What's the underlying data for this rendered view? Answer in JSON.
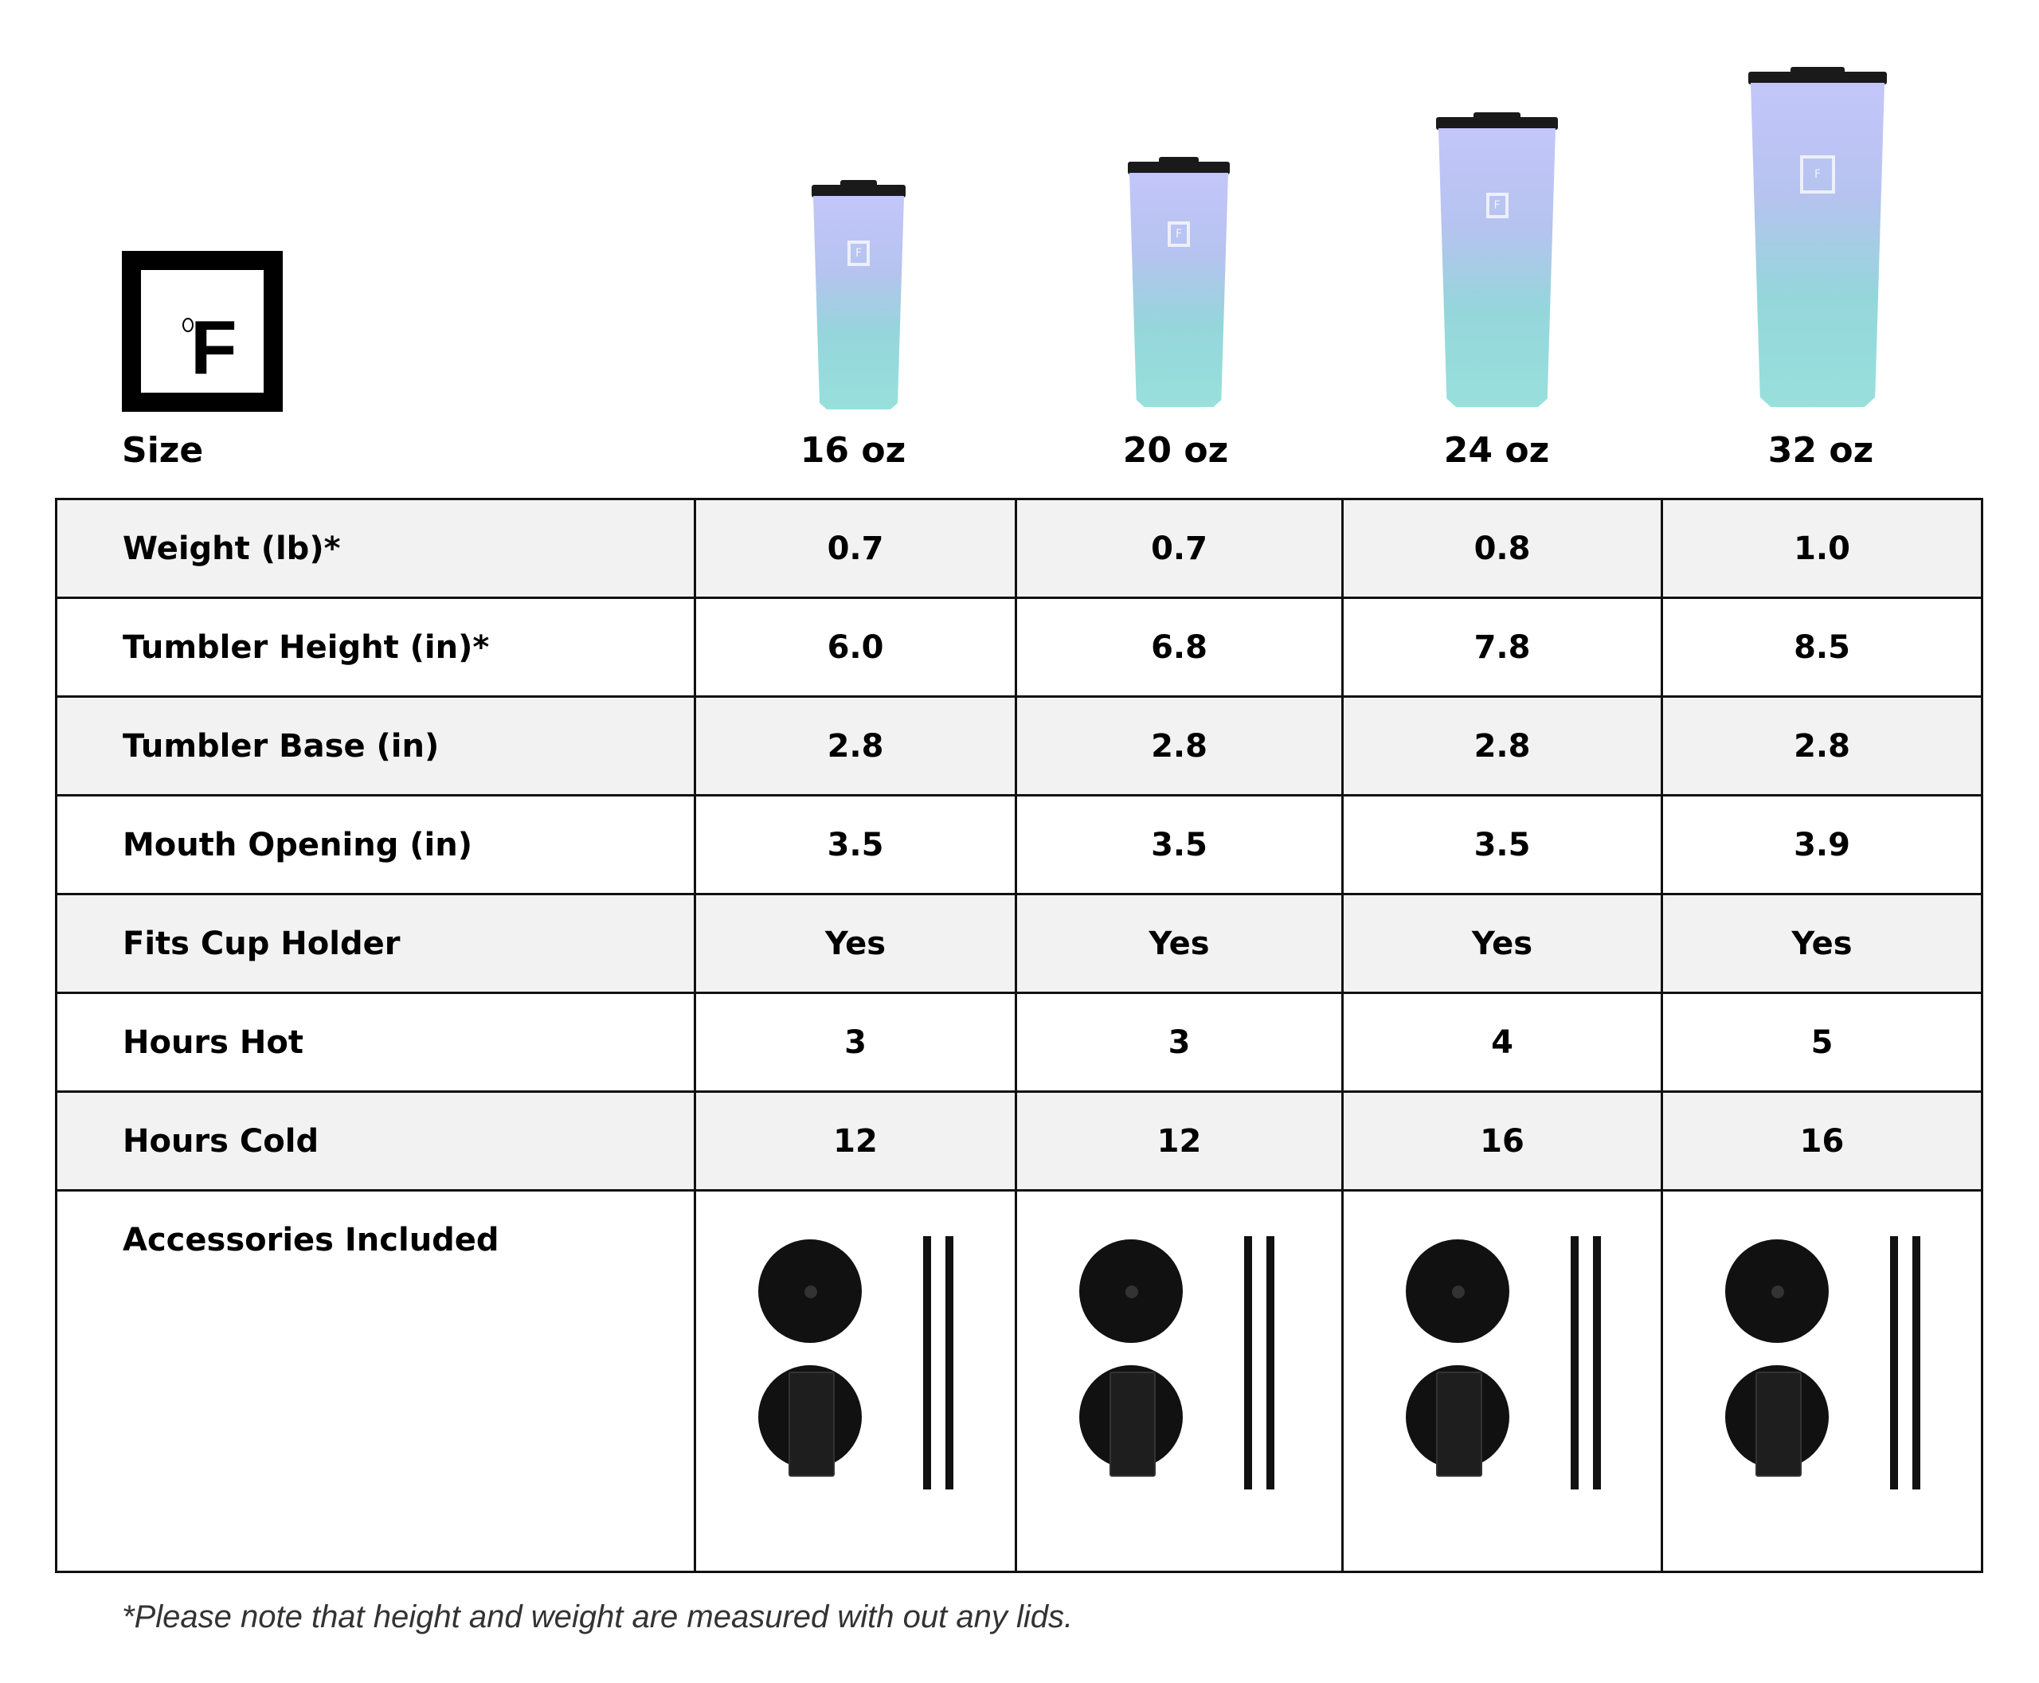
{
  "brand": {
    "logo_text": "°F"
  },
  "header": {
    "size_label": "Size",
    "sizes": [
      "16 oz",
      "20 oz",
      "24 oz",
      "32 oz"
    ]
  },
  "tumbler_colors": {
    "top": "#c3c6fa",
    "bottom": "#98e0dc",
    "lid": "#1a1a1a"
  },
  "rows": [
    {
      "label": "Weight (lb)*",
      "values": [
        "0.7",
        "0.7",
        "0.8",
        "1.0"
      ]
    },
    {
      "label": "Tumbler Height (in)*",
      "values": [
        "6.0",
        "6.8",
        "7.8",
        "8.5"
      ]
    },
    {
      "label": "Tumbler Base (in)",
      "values": [
        "2.8",
        "2.8",
        "2.8",
        "2.8"
      ]
    },
    {
      "label": "Mouth Opening (in)",
      "values": [
        "3.5",
        "3.5",
        "3.5",
        "3.9"
      ]
    },
    {
      "label": "Fits Cup Holder",
      "values": [
        "Yes",
        "Yes",
        "Yes",
        "Yes"
      ]
    },
    {
      "label": "Hours Hot",
      "values": [
        "3",
        "3",
        "4",
        "5"
      ]
    },
    {
      "label": "Hours Cold",
      "values": [
        "12",
        "12",
        "16",
        "16"
      ]
    }
  ],
  "accessories": {
    "label": "Accessories Included",
    "items": [
      "straw-lid-icon",
      "flip-lid-icon",
      "straw-icon",
      "straw-icon"
    ]
  },
  "footnote": "*Please note that height and weight are measured with out any lids."
}
